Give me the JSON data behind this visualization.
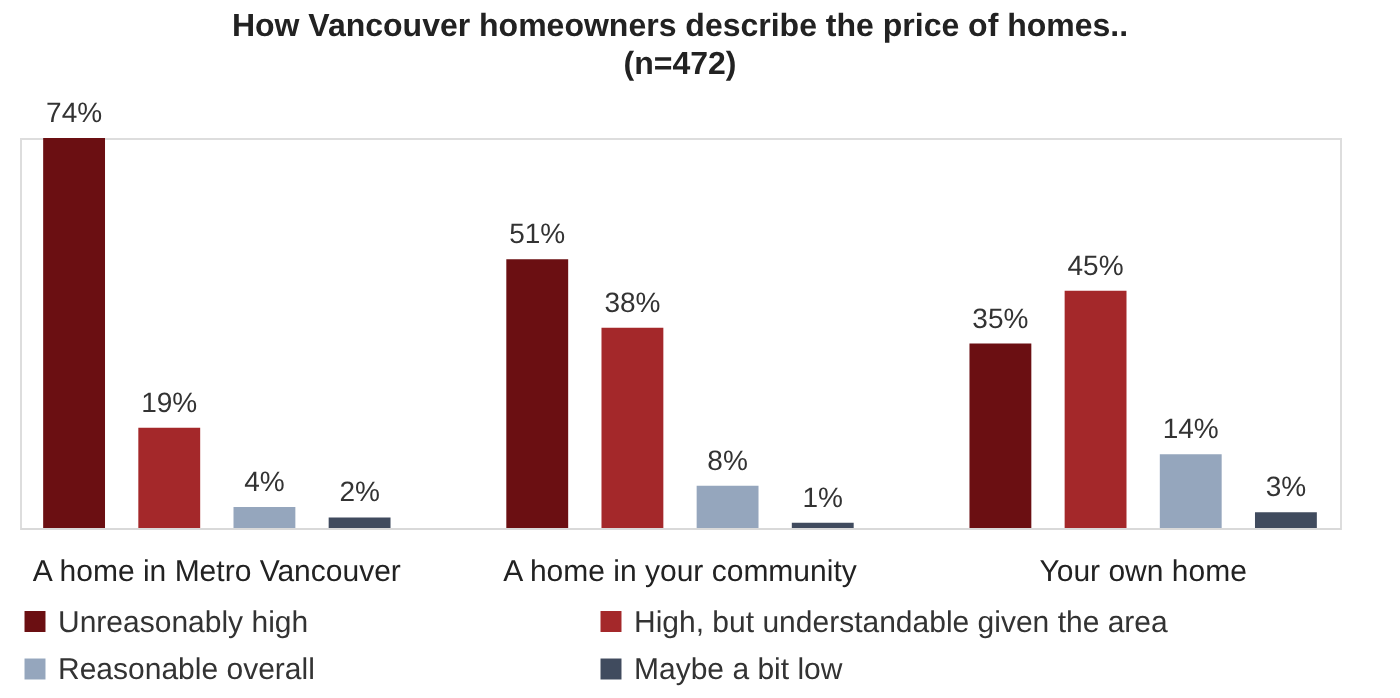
{
  "chart_data": {
    "type": "bar",
    "title": "How Vancouver homeowners describe the price of homes..",
    "subtitle": "(n=472)",
    "categories": [
      "A home in Metro Vancouver",
      "A home in your community",
      "Your own home"
    ],
    "series": [
      {
        "name": "Unreasonably high",
        "color": "#6b0f12",
        "values": [
          74,
          51,
          35
        ],
        "value_labels": [
          "74%",
          "51%",
          "35%"
        ]
      },
      {
        "name": "High, but understandable given the area",
        "color": "#a4282a",
        "values": [
          19,
          38,
          45
        ],
        "value_labels": [
          "19%",
          "38%",
          "45%"
        ]
      },
      {
        "name": "Reasonable overall",
        "color": "#95a6bd",
        "values": [
          4,
          8,
          14
        ],
        "value_labels": [
          "4%",
          "8%",
          "14%"
        ]
      },
      {
        "name": "Maybe a bit low",
        "color": "#404b5e",
        "values": [
          2,
          1,
          3
        ],
        "value_labels": [
          "2%",
          "1%",
          "3%"
        ]
      }
    ],
    "legend": "bottom",
    "grid": false
  }
}
